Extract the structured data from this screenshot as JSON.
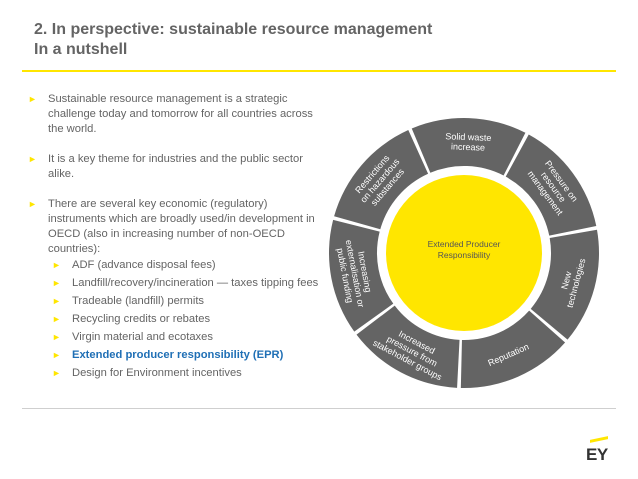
{
  "title": {
    "line1": "2. In perspective: sustainable resource management",
    "line2": "In a nutshell"
  },
  "bullets": [
    {
      "text": "Sustainable resource management is a strategic challenge today and tomorrow for all countries across the world."
    },
    {
      "text": "It is a key theme for industries and the public sector alike."
    },
    {
      "text": "There are several key economic (regulatory) instruments which are broadly used/in development in OECD (also in increasing number of non-OECD countries):"
    }
  ],
  "sub_bullets": [
    {
      "text": "ADF (advance disposal fees)"
    },
    {
      "text": "Landfill/recovery/incineration — taxes tipping fees"
    },
    {
      "text": "Tradeable (landfill) permits"
    },
    {
      "text": "Recycling credits or rebates"
    },
    {
      "text": "Virgin material and ecotaxes"
    },
    {
      "text": "Extended producer responsibility (EPR)",
      "highlight": true
    },
    {
      "text": "Design for Environment incentives"
    }
  ],
  "diagram": {
    "center_label_line1": "Extended Producer",
    "center_label_line2": "Responsibility",
    "segments": [
      {
        "lines": [
          "Restrictions",
          "on hazardous",
          "substances"
        ]
      },
      {
        "lines": [
          "Solid waste",
          "increase"
        ]
      },
      {
        "lines": [
          "Pressure on",
          "resource",
          "management"
        ]
      },
      {
        "lines": [
          "New",
          "technologies"
        ]
      },
      {
        "lines": [
          "Reputation"
        ]
      },
      {
        "lines": [
          "Increased",
          "pressure from",
          "stakeholder groups"
        ]
      },
      {
        "lines": [
          "Increasing",
          "externalisation or",
          "public funding"
        ]
      }
    ]
  },
  "logo": "EY",
  "colors": {
    "accent_yellow": "#ffe600",
    "segment_grey": "#646464",
    "title_grey": "#646464",
    "highlight_blue": "#1f6fb5"
  }
}
